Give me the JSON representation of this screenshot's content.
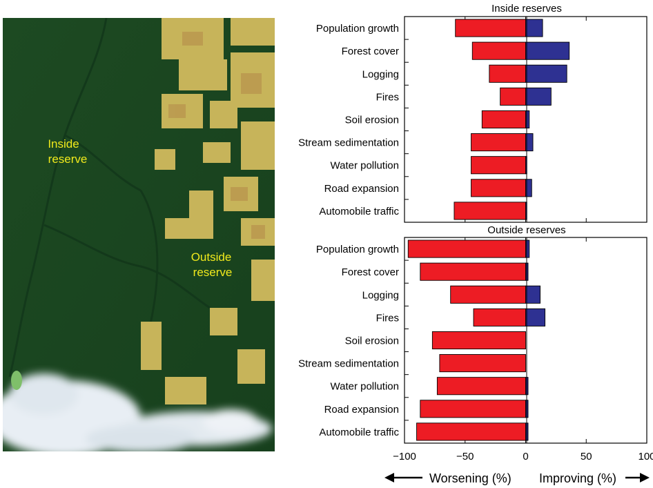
{
  "image_labels": {
    "inside": [
      "Inside",
      "reserve"
    ],
    "outside": [
      "Outside",
      "reserve"
    ]
  },
  "colors": {
    "worsening": "#ed1c24",
    "improving": "#2e3192",
    "forest": "#1e4d22",
    "cleared": "#c9b95c",
    "cloud": "#e8eef4"
  },
  "x_axis": {
    "ticks": [
      -100,
      -50,
      0,
      50,
      100
    ],
    "tick_labels": [
      "−100",
      "−50",
      "0",
      "50",
      "100"
    ],
    "xlim": [
      -100,
      100
    ],
    "worsening_label": "Worsening (%)",
    "improving_label": "Improving (%)"
  },
  "chart_data": [
    {
      "type": "bar",
      "orientation": "horizontal",
      "title": "Inside reserves",
      "categories": [
        "Population growth",
        "Forest cover",
        "Logging",
        "Fires",
        "Soil erosion",
        "Stream sedimentation",
        "Water pollution",
        "Road expansion",
        "Automobile traffic"
      ],
      "series": [
        {
          "name": "Worsening",
          "values": [
            -58,
            -44,
            -30,
            -21,
            -36,
            -45,
            -45,
            -45,
            -59
          ]
        },
        {
          "name": "Improving",
          "values": [
            14,
            36,
            34,
            21,
            3,
            6,
            1,
            5,
            1
          ]
        }
      ],
      "xlim": [
        -100,
        100
      ]
    },
    {
      "type": "bar",
      "orientation": "horizontal",
      "title": "Outside reserves",
      "categories": [
        "Population growth",
        "Forest cover",
        "Logging",
        "Fires",
        "Soil erosion",
        "Stream sedimentation",
        "Water pollution",
        "Road expansion",
        "Automobile traffic"
      ],
      "series": [
        {
          "name": "Worsening",
          "values": [
            -97,
            -87,
            -62,
            -43,
            -77,
            -71,
            -73,
            -87,
            -90
          ]
        },
        {
          "name": "Improving",
          "values": [
            3,
            2,
            12,
            16,
            0,
            0,
            2,
            2,
            2
          ]
        }
      ],
      "xlim": [
        -100,
        100
      ]
    }
  ]
}
